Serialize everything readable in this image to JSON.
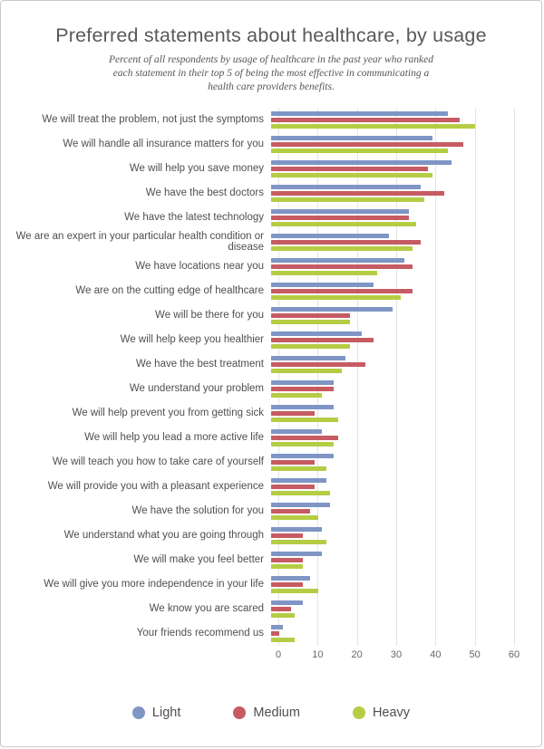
{
  "page": {
    "title": "Preferred statements about healthcare, by usage",
    "subtitle_lines": [
      "Percent of all respondents by usage of healthcare in the past year who ranked",
      "each statement in their top 5 of being the most effective in communicating a",
      "health care providers benefits."
    ]
  },
  "colors": {
    "light_blue": "#7e95c5",
    "medium_red": "#c75b62",
    "heavy_green": "#b4cd45",
    "title_text": "#58595b",
    "body_text": "#4f4f4f",
    "gridline": "#e4e4e4",
    "page_border": "#c9c9c9"
  },
  "chart_data": {
    "type": "bar",
    "orientation": "horizontal",
    "title": "Preferred statements about healthcare, by usage",
    "subtitle": "Percent of all respondents by usage of healthcare in the past year who ranked each statement in their top 5 of being the most effective in communicating a health care providers benefits.",
    "xlabel": "",
    "ylabel": "",
    "xlim": [
      0,
      60
    ],
    "xticks": [
      0,
      10,
      20,
      30,
      40,
      50,
      60
    ],
    "grid": true,
    "legend_position": "bottom",
    "categories": [
      "We will treat the problem, not just the symptoms",
      "We will handle all insurance matters for you",
      "We will help you save money",
      "We have the best doctors",
      "We have the latest technology",
      "We are an expert in your particular health condition or disease",
      "We have locations near you",
      "We are on the cutting edge of healthcare",
      "We will be there for you",
      "We will help keep you healthier",
      "We have the best treatment",
      "We understand your problem",
      "We will help prevent you from getting sick",
      "We will help you lead a more active life",
      "We will teach you how to take care of yourself",
      "We will provide you with a pleasant experience",
      "We have the solution for you",
      "We understand what you are going through",
      "We will make you feel better",
      "We will give you more independence in your life",
      "We know you are scared",
      "Your friends recommend us"
    ],
    "series": [
      {
        "name": "Light",
        "color": "#7e95c5",
        "values": [
          45,
          41,
          46,
          38,
          35,
          30,
          34,
          26,
          31,
          23,
          19,
          16,
          16,
          13,
          16,
          14,
          15,
          13,
          13,
          10,
          8,
          3
        ]
      },
      {
        "name": "Medium",
        "color": "#c75b62",
        "values": [
          48,
          49,
          40,
          44,
          35,
          38,
          36,
          36,
          20,
          26,
          24,
          16,
          11,
          17,
          11,
          11,
          10,
          8,
          8,
          8,
          5,
          2
        ]
      },
      {
        "name": "Heavy",
        "color": "#b4cd45",
        "values": [
          52,
          45,
          41,
          39,
          37,
          36,
          27,
          33,
          20,
          20,
          18,
          13,
          17,
          16,
          14,
          15,
          12,
          14,
          8,
          12,
          6,
          6
        ]
      }
    ]
  }
}
